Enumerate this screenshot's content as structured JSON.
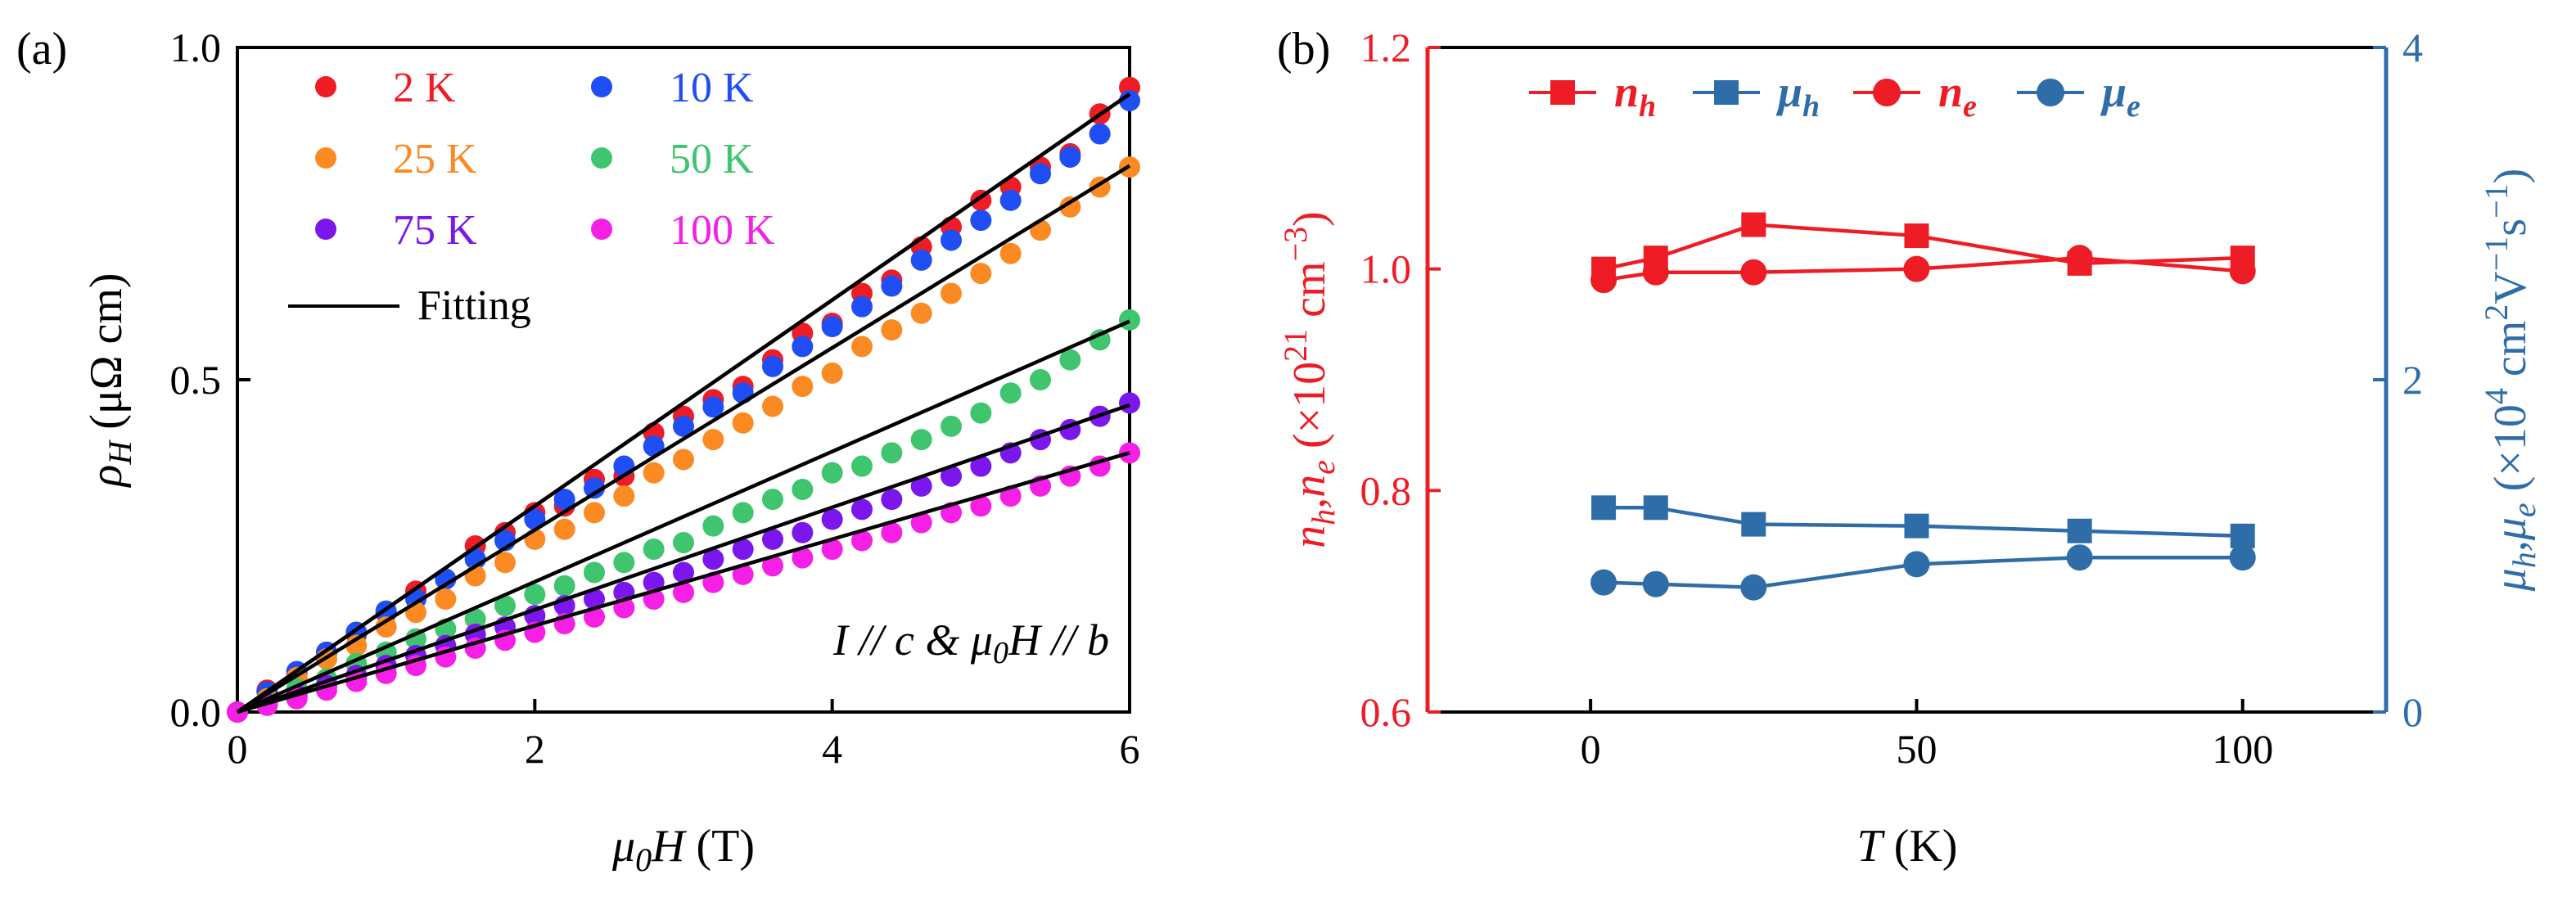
{
  "colors": {
    "red": "#ee1c25",
    "blue": "#1f4ef5",
    "orange": "#fb8a22",
    "green": "#3fc56e",
    "purple": "#7b16ec",
    "magenta": "#f51fe6",
    "fit": "#000000",
    "steel": "#2f6da8",
    "axis_red": "#ee1c25"
  },
  "chart_data": [
    {
      "panel_label": "(a)",
      "type": "scatter",
      "title": "",
      "xlabel": "μ0H (T)",
      "ylabel": "ρH (μΩ cm)",
      "xlim": [
        0,
        6
      ],
      "ylim": [
        0,
        1.0
      ],
      "xticks": [
        0,
        2,
        4,
        6
      ],
      "xtick_labels": [
        "0",
        "2",
        "4",
        "6"
      ],
      "yticks": [
        0.0,
        0.5,
        1.0
      ],
      "ytick_labels": [
        "0.0",
        "0.5",
        "1.0"
      ],
      "grid": false,
      "legend_position": "top-left",
      "annotation": "I // c & μ0H // b",
      "fit_label": "Fitting",
      "x": [
        0,
        0.2,
        0.4,
        0.6,
        0.8,
        1.0,
        1.2,
        1.4,
        1.6,
        1.8,
        2.0,
        2.2,
        2.4,
        2.6,
        2.8,
        3.0,
        3.2,
        3.4,
        3.6,
        3.8,
        4.0,
        4.2,
        4.4,
        4.6,
        4.8,
        5.0,
        5.2,
        5.4,
        5.6,
        5.8,
        6.0
      ],
      "series": [
        {
          "name": "2 K",
          "color_key": "red",
          "fit": [
            0.0,
            0.155
          ],
          "values": [
            0.0,
            0.033,
            0.057,
            0.09,
            0.117,
            0.149,
            0.182,
            0.2,
            0.25,
            0.27,
            0.3,
            0.31,
            0.35,
            0.355,
            0.42,
            0.445,
            0.47,
            0.49,
            0.53,
            0.57,
            0.585,
            0.63,
            0.65,
            0.7,
            0.73,
            0.77,
            0.79,
            0.82,
            0.84,
            0.9,
            0.94
          ]
        },
        {
          "name": "10 K",
          "color_key": "blue",
          "fit": [
            0.0,
            0.155
          ],
          "values": [
            0.0,
            0.03,
            0.061,
            0.09,
            0.12,
            0.152,
            0.17,
            0.2,
            0.23,
            0.258,
            0.29,
            0.32,
            0.337,
            0.37,
            0.4,
            0.43,
            0.459,
            0.48,
            0.52,
            0.55,
            0.58,
            0.61,
            0.641,
            0.68,
            0.71,
            0.74,
            0.77,
            0.81,
            0.835,
            0.87,
            0.92
          ]
        },
        {
          "name": "25 K",
          "color_key": "orange",
          "fit": [
            0.0,
            0.137
          ],
          "values": [
            0.0,
            0.02,
            0.052,
            0.08,
            0.1,
            0.128,
            0.15,
            0.17,
            0.205,
            0.225,
            0.26,
            0.275,
            0.3,
            0.325,
            0.36,
            0.38,
            0.41,
            0.435,
            0.46,
            0.49,
            0.51,
            0.55,
            0.575,
            0.6,
            0.63,
            0.66,
            0.69,
            0.725,
            0.76,
            0.79,
            0.82
          ]
        },
        {
          "name": "50 K",
          "color_key": "green",
          "fit": [
            0.0,
            0.098
          ],
          "values": [
            0.0,
            0.015,
            0.035,
            0.05,
            0.073,
            0.09,
            0.11,
            0.125,
            0.14,
            0.16,
            0.177,
            0.19,
            0.21,
            0.225,
            0.245,
            0.255,
            0.28,
            0.3,
            0.32,
            0.335,
            0.36,
            0.37,
            0.39,
            0.41,
            0.43,
            0.45,
            0.48,
            0.5,
            0.53,
            0.56,
            0.59
          ]
        },
        {
          "name": "75 K",
          "color_key": "purple",
          "fit": [
            0.0,
            0.077
          ],
          "values": [
            0.0,
            0.012,
            0.025,
            0.04,
            0.055,
            0.07,
            0.085,
            0.1,
            0.117,
            0.128,
            0.145,
            0.16,
            0.17,
            0.18,
            0.195,
            0.21,
            0.23,
            0.245,
            0.26,
            0.27,
            0.29,
            0.305,
            0.32,
            0.34,
            0.355,
            0.37,
            0.39,
            0.41,
            0.425,
            0.445,
            0.465
          ]
        },
        {
          "name": "100 K",
          "color_key": "magenta",
          "fit": [
            0.0,
            0.065
          ],
          "values": [
            0.0,
            0.01,
            0.02,
            0.033,
            0.046,
            0.058,
            0.07,
            0.083,
            0.096,
            0.108,
            0.12,
            0.133,
            0.143,
            0.157,
            0.17,
            0.18,
            0.195,
            0.207,
            0.22,
            0.232,
            0.245,
            0.258,
            0.27,
            0.285,
            0.3,
            0.31,
            0.325,
            0.34,
            0.355,
            0.37,
            0.39
          ]
        }
      ]
    },
    {
      "panel_label": "(b)",
      "type": "line",
      "title": "",
      "xlabel": "T (K)",
      "xlim": [
        -25,
        122
      ],
      "xticks": [
        0,
        50,
        100
      ],
      "xtick_labels": [
        "0",
        "50",
        "100"
      ],
      "ylabel_left": "nh,ne (×10^21 cm^−3)",
      "ylim_left": [
        0.6,
        1.2
      ],
      "yticks_left": [
        0.6,
        0.8,
        1.0,
        1.2
      ],
      "ytick_labels_left": [
        "0.6",
        "0.8",
        "1.0",
        "1.2"
      ],
      "ylabel_right": "μh,μe (×10^4 cm^2V^−1s^−1)",
      "ylim_right": [
        0,
        4
      ],
      "yticks_right": [
        0,
        2,
        4
      ],
      "ytick_labels_right": [
        "0",
        "2",
        "4"
      ],
      "grid": false,
      "legend_position": "top",
      "x": [
        2,
        10,
        25,
        50,
        75,
        100
      ],
      "series": [
        {
          "name": "nh",
          "axis": "left",
          "marker": "square",
          "color_key": "red",
          "values": [
            1.0,
            1.01,
            1.04,
            1.03,
            1.005,
            1.01
          ]
        },
        {
          "name": "μh",
          "axis": "right",
          "marker": "square",
          "color_key": "steel",
          "values": [
            1.23,
            1.23,
            1.13,
            1.12,
            1.09,
            1.06
          ]
        },
        {
          "name": "ne",
          "axis": "left",
          "marker": "circle",
          "color_key": "red",
          "values": [
            0.99,
            0.997,
            0.997,
            1.0,
            1.01,
            0.998
          ]
        },
        {
          "name": "μe",
          "axis": "right",
          "marker": "circle",
          "color_key": "steel",
          "values": [
            0.78,
            0.77,
            0.75,
            0.89,
            0.93,
            0.93
          ]
        }
      ]
    }
  ]
}
